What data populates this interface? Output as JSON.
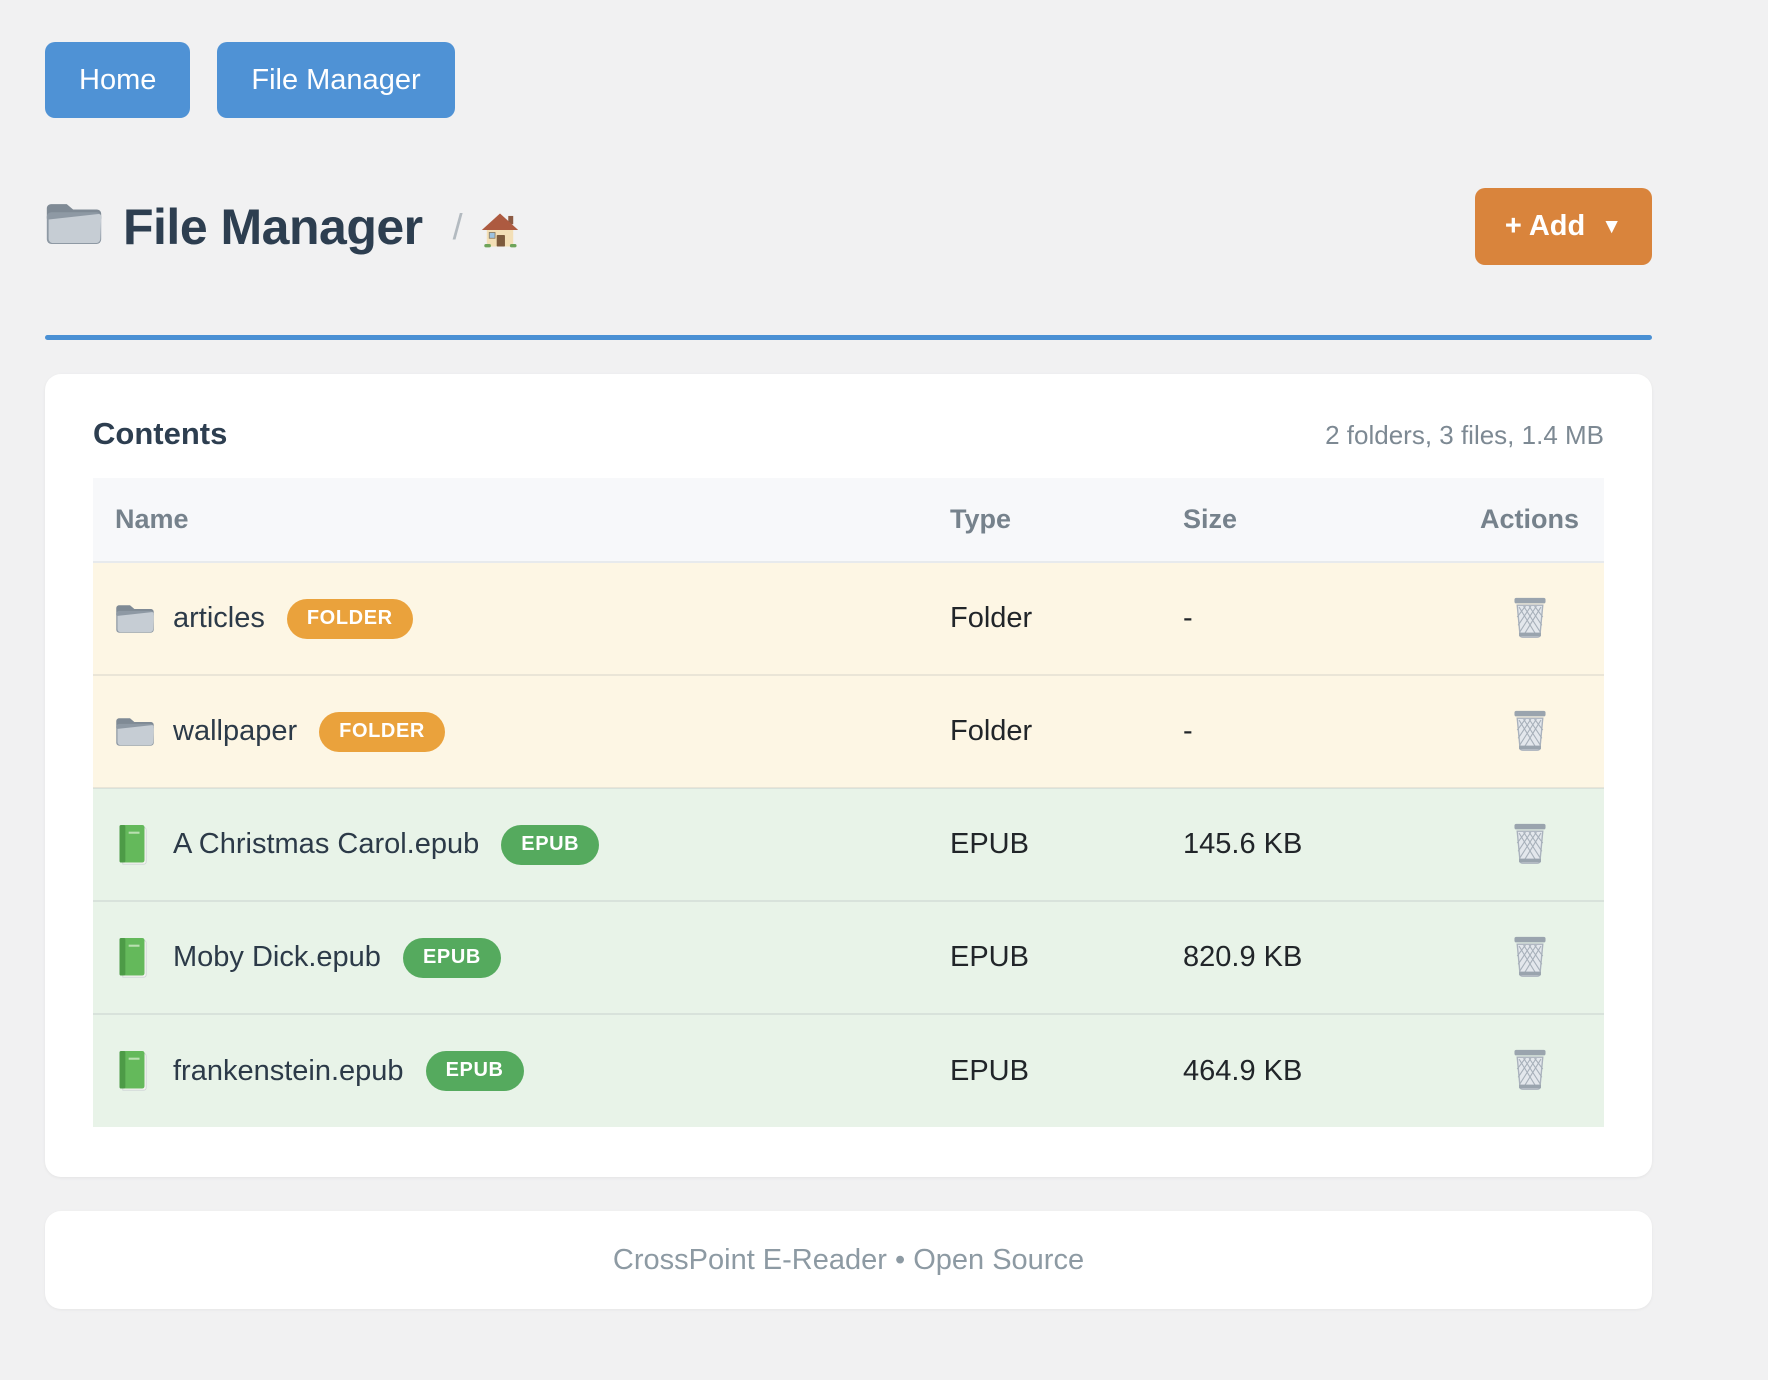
{
  "nav": {
    "items": [
      {
        "label": "Home"
      },
      {
        "label": "File Manager"
      }
    ]
  },
  "header": {
    "title": "File Manager",
    "title_icon": "folder-icon",
    "breadcrumb_separator": "/",
    "breadcrumb_home_icon": "house-icon",
    "add_button": {
      "label": "+ Add",
      "caret": "▼"
    }
  },
  "contents": {
    "heading": "Contents",
    "summary": "2 folders, 3 files, 1.4 MB",
    "columns": [
      "Name",
      "Type",
      "Size",
      "Actions"
    ],
    "rows": [
      {
        "name": "articles",
        "badge": "FOLDER",
        "type": "Folder",
        "size": "-",
        "kind": "folder",
        "icon": "folder-icon",
        "action_icon": "trash-icon"
      },
      {
        "name": "wallpaper",
        "badge": "FOLDER",
        "type": "Folder",
        "size": "-",
        "kind": "folder",
        "icon": "folder-icon",
        "action_icon": "trash-icon"
      },
      {
        "name": "A Christmas Carol.epub",
        "badge": "EPUB",
        "type": "EPUB",
        "size": "145.6 KB",
        "kind": "epub",
        "icon": "book-icon",
        "action_icon": "trash-icon"
      },
      {
        "name": "Moby Dick.epub",
        "badge": "EPUB",
        "type": "EPUB",
        "size": "820.9 KB",
        "kind": "epub",
        "icon": "book-icon",
        "action_icon": "trash-icon"
      },
      {
        "name": "frankenstein.epub",
        "badge": "EPUB",
        "type": "EPUB",
        "size": "464.9 KB",
        "kind": "epub",
        "icon": "book-icon",
        "action_icon": "trash-icon"
      }
    ]
  },
  "footer": {
    "text": "CrossPoint E-Reader • Open Source"
  },
  "colors": {
    "page_bg": "#f1f1f2",
    "nav_button": "#4f92d5",
    "accent_rule": "#4a90d4",
    "add_button": "#d9843c",
    "folder_badge": "#eaa23c",
    "epub_badge": "#55aa5e",
    "folder_row_bg": "#fdf6e4",
    "epub_row_bg": "#e8f3e8"
  }
}
